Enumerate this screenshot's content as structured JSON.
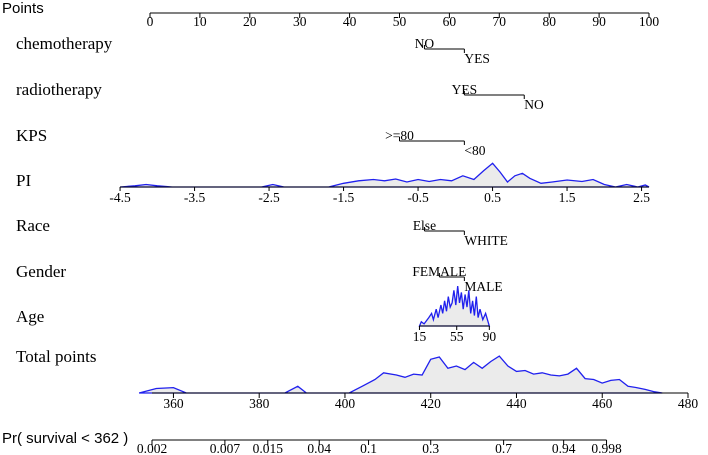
{
  "chart_data": {
    "type": "nomogram",
    "title": "",
    "points_axis": {
      "label": "Points",
      "ticks": [
        "0",
        "10",
        "20",
        "30",
        "40",
        "50",
        "60",
        "70",
        "80",
        "90",
        "100"
      ],
      "range": [
        0,
        100
      ]
    },
    "variables": [
      {
        "name": "chemotherapy",
        "levels": [
          {
            "label": "NO",
            "points": 55
          },
          {
            "label": "YES",
            "points": 63
          }
        ]
      },
      {
        "name": "radiotherapy",
        "levels": [
          {
            "label": "YES",
            "points": 63
          },
          {
            "label": "NO",
            "points": 75
          }
        ]
      },
      {
        "name": "KPS",
        "levels": [
          {
            "label": ">=80",
            "points": 50
          },
          {
            "label": "<80",
            "points": 63
          }
        ]
      },
      {
        "name": "PI",
        "continuous": true,
        "value_range": [
          -4.5,
          2.6
        ],
        "points_range": [
          -6,
          100
        ],
        "ticks": [
          "-4.5",
          "-3.5",
          "-2.5",
          "-1.5",
          "-0.5",
          "0.5",
          "1.5",
          "2.5"
        ],
        "density": [
          [
            -4.5,
            0
          ],
          [
            -4.3,
            0.05
          ],
          [
            -4.15,
            0.1
          ],
          [
            -4.0,
            0.05
          ],
          [
            -3.8,
            0
          ],
          [
            -2.6,
            0
          ],
          [
            -2.45,
            0.1
          ],
          [
            -2.3,
            0
          ],
          [
            -1.7,
            0
          ],
          [
            -1.5,
            0.15
          ],
          [
            -1.3,
            0.25
          ],
          [
            -1.1,
            0.3
          ],
          [
            -0.95,
            0.25
          ],
          [
            -0.8,
            0.32
          ],
          [
            -0.65,
            0.2
          ],
          [
            -0.5,
            0.3
          ],
          [
            -0.35,
            0.22
          ],
          [
            -0.2,
            0.3
          ],
          [
            -0.05,
            0.25
          ],
          [
            0.1,
            0.45
          ],
          [
            0.25,
            0.3
          ],
          [
            0.38,
            0.65
          ],
          [
            0.5,
            0.95
          ],
          [
            0.6,
            0.6
          ],
          [
            0.7,
            0.2
          ],
          [
            0.8,
            0.45
          ],
          [
            0.9,
            0.55
          ],
          [
            1.0,
            0.35
          ],
          [
            1.15,
            0.15
          ],
          [
            1.3,
            0.2
          ],
          [
            1.5,
            0.28
          ],
          [
            1.7,
            0.22
          ],
          [
            1.85,
            0.3
          ],
          [
            2.0,
            0.1
          ],
          [
            2.15,
            0
          ],
          [
            2.3,
            0.1
          ],
          [
            2.45,
            0
          ],
          [
            2.55,
            0.08
          ],
          [
            2.6,
            0
          ]
        ]
      },
      {
        "name": "Race",
        "levels": [
          {
            "label": "Else",
            "points": 55
          },
          {
            "label": "WHITE",
            "points": 63
          }
        ]
      },
      {
        "name": "Gender",
        "levels": [
          {
            "label": "FEMALE",
            "points": 58
          },
          {
            "label": "MALE",
            "points": 63
          }
        ]
      },
      {
        "name": "Age",
        "continuous": true,
        "value_range": [
          15,
          90
        ],
        "points_range": [
          54,
          68
        ],
        "ticks": [
          "15",
          "55",
          "90"
        ],
        "density": [
          [
            15,
            0
          ],
          [
            17,
            0.1
          ],
          [
            20,
            0.05
          ],
          [
            25,
            0.2
          ],
          [
            28,
            0.3
          ],
          [
            30,
            0.15
          ],
          [
            33,
            0.4
          ],
          [
            35,
            0.2
          ],
          [
            38,
            0.5
          ],
          [
            40,
            0.3
          ],
          [
            42,
            0.6
          ],
          [
            44,
            0.35
          ],
          [
            46,
            0.7
          ],
          [
            48,
            0.45
          ],
          [
            50,
            0.55
          ],
          [
            52,
            0.85
          ],
          [
            54,
            0.5
          ],
          [
            56,
            0.95
          ],
          [
            58,
            0.55
          ],
          [
            60,
            0.8
          ],
          [
            62,
            0.4
          ],
          [
            64,
            0.75
          ],
          [
            66,
            0.45
          ],
          [
            68,
            0.85
          ],
          [
            70,
            0.3
          ],
          [
            72,
            0.6
          ],
          [
            74,
            0.25
          ],
          [
            76,
            0.7
          ],
          [
            78,
            0.2
          ],
          [
            80,
            0.4
          ],
          [
            83,
            0.15
          ],
          [
            86,
            0.3
          ],
          [
            90,
            0
          ]
        ]
      }
    ],
    "total_points": {
      "label": "Total points",
      "range": [
        355,
        480
      ],
      "ticks": [
        "360",
        "380",
        "400",
        "420",
        "440",
        "460",
        "480"
      ],
      "density": [
        [
          352,
          0
        ],
        [
          356,
          0.1
        ],
        [
          360,
          0.12
        ],
        [
          363,
          0
        ],
        [
          386,
          0
        ],
        [
          389,
          0.15
        ],
        [
          391,
          0
        ],
        [
          401,
          0
        ],
        [
          404,
          0.15
        ],
        [
          407,
          0.3
        ],
        [
          409,
          0.45
        ],
        [
          412,
          0.4
        ],
        [
          414,
          0.35
        ],
        [
          416,
          0.42
        ],
        [
          418,
          0.4
        ],
        [
          420,
          0.75
        ],
        [
          422,
          0.8
        ],
        [
          424,
          0.55
        ],
        [
          426,
          0.6
        ],
        [
          428,
          0.52
        ],
        [
          430,
          0.68
        ],
        [
          432,
          0.55
        ],
        [
          434,
          0.7
        ],
        [
          436,
          0.82
        ],
        [
          438,
          0.6
        ],
        [
          440,
          0.48
        ],
        [
          442,
          0.5
        ],
        [
          444,
          0.42
        ],
        [
          446,
          0.45
        ],
        [
          448,
          0.4
        ],
        [
          450,
          0.38
        ],
        [
          452,
          0.42
        ],
        [
          454,
          0.55
        ],
        [
          456,
          0.32
        ],
        [
          458,
          0.3
        ],
        [
          460,
          0.22
        ],
        [
          462,
          0.28
        ],
        [
          464,
          0.3
        ],
        [
          466,
          0.15
        ],
        [
          468,
          0.12
        ],
        [
          470,
          0.08
        ],
        [
          472,
          0.03
        ],
        [
          474,
          0
        ]
      ]
    },
    "survival_axis": {
      "label": "Pr( survival < 362 )",
      "ticks": [
        {
          "label": "0.002",
          "total": 355
        },
        {
          "label": "0.007",
          "total": 372
        },
        {
          "label": "0.015",
          "total": 382
        },
        {
          "label": "0.04",
          "total": 394
        },
        {
          "label": "0.1",
          "total": 405.5
        },
        {
          "label": "0.3",
          "total": 420
        },
        {
          "label": "0.7",
          "total": 437
        },
        {
          "label": "0.94",
          "total": 451
        },
        {
          "label": "0.998",
          "total": 461
        }
      ],
      "total_range": [
        355,
        461
      ]
    }
  }
}
